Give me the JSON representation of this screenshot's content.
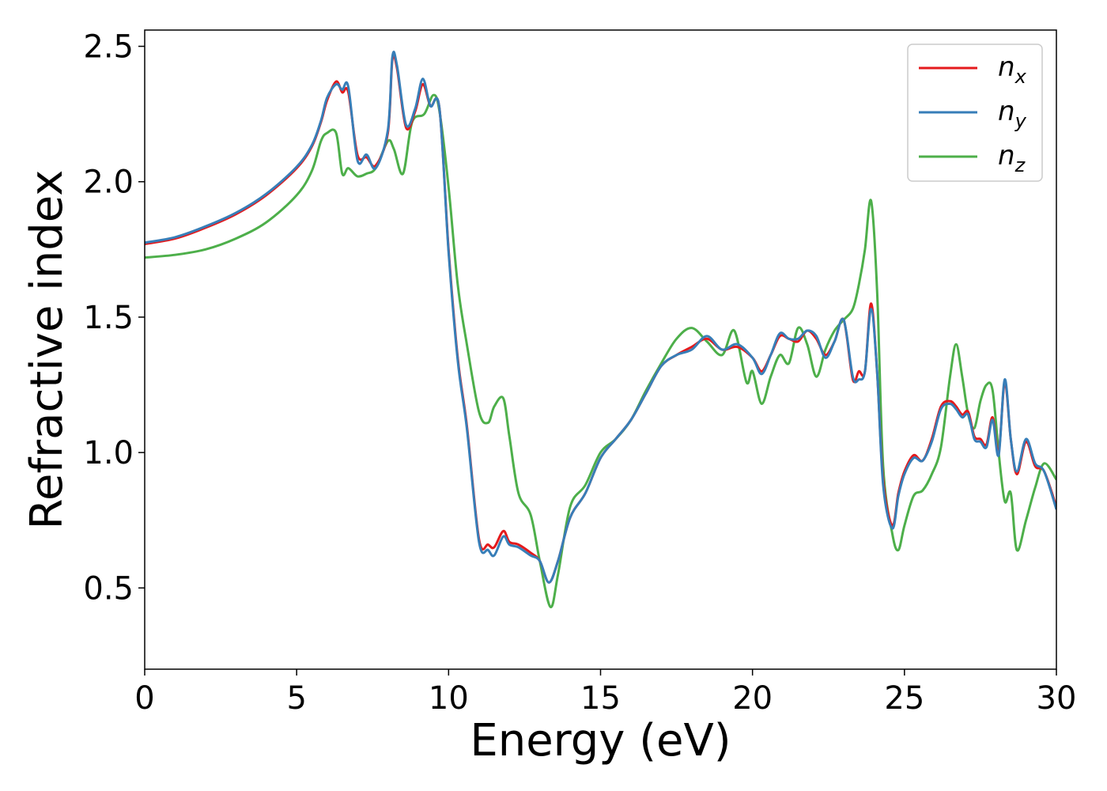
{
  "chart_data": {
    "type": "line",
    "xlabel": "Energy (eV)",
    "ylabel": "Refractive index",
    "xlim": [
      0,
      30
    ],
    "ylim": [
      0.2,
      2.56
    ],
    "xticks": [
      0,
      5,
      10,
      15,
      20,
      25,
      30
    ],
    "xtick_labels": [
      "0",
      "5",
      "10",
      "15",
      "20",
      "25",
      "30"
    ],
    "yticks": [
      0.5,
      1.0,
      1.5,
      2.0,
      2.5
    ],
    "ytick_labels": [
      "0.5",
      "1.0",
      "1.5",
      "2.0",
      "2.5"
    ],
    "grid": false,
    "legend_position": "top-right",
    "series": [
      {
        "name": "n_x",
        "legend_main": "n",
        "legend_sub": "x",
        "color": "#e41a1c",
        "x": [
          0,
          1,
          2,
          3,
          4,
          5,
          5.5,
          5.8,
          6.0,
          6.3,
          6.5,
          6.7,
          7.0,
          7.3,
          7.6,
          8.0,
          8.15,
          8.3,
          8.6,
          8.9,
          9.15,
          9.4,
          9.7,
          10.0,
          10.3,
          10.6,
          11.0,
          11.3,
          11.5,
          11.8,
          12.0,
          12.3,
          12.7,
          13.0,
          13.3,
          13.6,
          14.0,
          14.5,
          15.0,
          15.5,
          16.0,
          16.5,
          17.0,
          17.5,
          18.0,
          18.5,
          19.0,
          19.5,
          20.0,
          20.3,
          20.6,
          20.9,
          21.2,
          21.5,
          21.8,
          22.1,
          22.4,
          22.7,
          23.0,
          23.3,
          23.5,
          23.7,
          23.9,
          24.1,
          24.3,
          24.6,
          24.8,
          25.0,
          25.3,
          25.6,
          25.9,
          26.2,
          26.5,
          26.7,
          26.9,
          27.1,
          27.3,
          27.5,
          27.7,
          27.9,
          28.1,
          28.3,
          28.5,
          28.7,
          29.0,
          29.3,
          29.6,
          30.0
        ],
        "y": [
          1.77,
          1.79,
          1.83,
          1.88,
          1.95,
          2.05,
          2.13,
          2.22,
          2.3,
          2.37,
          2.33,
          2.33,
          2.1,
          2.09,
          2.06,
          2.18,
          2.45,
          2.42,
          2.2,
          2.26,
          2.36,
          2.28,
          2.27,
          1.75,
          1.35,
          1.1,
          0.68,
          0.66,
          0.65,
          0.71,
          0.67,
          0.66,
          0.63,
          0.6,
          0.52,
          0.6,
          0.76,
          0.85,
          0.98,
          1.05,
          1.12,
          1.22,
          1.32,
          1.36,
          1.39,
          1.42,
          1.38,
          1.39,
          1.35,
          1.3,
          1.36,
          1.43,
          1.42,
          1.41,
          1.45,
          1.42,
          1.36,
          1.41,
          1.49,
          1.27,
          1.3,
          1.3,
          1.55,
          1.3,
          0.9,
          0.73,
          0.85,
          0.93,
          0.99,
          0.97,
          1.05,
          1.17,
          1.19,
          1.17,
          1.14,
          1.15,
          1.06,
          1.05,
          1.03,
          1.13,
          1.0,
          1.26,
          1.05,
          0.92,
          1.04,
          0.95,
          0.93,
          0.8
        ]
      },
      {
        "name": "n_y",
        "legend_main": "n",
        "legend_sub": "y",
        "color": "#377eb8",
        "x": [
          0,
          1,
          2,
          3,
          4,
          5,
          5.5,
          5.8,
          6.0,
          6.3,
          6.5,
          6.7,
          7.0,
          7.3,
          7.6,
          8.0,
          8.15,
          8.3,
          8.6,
          8.9,
          9.15,
          9.4,
          9.7,
          10.0,
          10.3,
          10.6,
          11.0,
          11.3,
          11.5,
          11.8,
          12.0,
          12.3,
          12.7,
          13.0,
          13.3,
          13.6,
          14.0,
          14.5,
          15.0,
          15.5,
          16.0,
          16.5,
          17.0,
          17.5,
          18.0,
          18.5,
          19.0,
          19.5,
          20.0,
          20.3,
          20.6,
          20.9,
          21.2,
          21.5,
          21.8,
          22.1,
          22.4,
          22.7,
          23.0,
          23.3,
          23.5,
          23.7,
          23.9,
          24.1,
          24.3,
          24.6,
          24.8,
          25.0,
          25.3,
          25.6,
          25.9,
          26.2,
          26.5,
          26.7,
          26.9,
          27.1,
          27.3,
          27.5,
          27.7,
          27.9,
          28.1,
          28.3,
          28.5,
          28.7,
          29.0,
          29.3,
          29.6,
          30.0
        ],
        "y": [
          1.775,
          1.795,
          1.835,
          1.885,
          1.955,
          2.055,
          2.135,
          2.225,
          2.31,
          2.36,
          2.34,
          2.35,
          2.08,
          2.1,
          2.05,
          2.19,
          2.46,
          2.43,
          2.21,
          2.27,
          2.38,
          2.28,
          2.27,
          1.74,
          1.34,
          1.09,
          0.67,
          0.64,
          0.62,
          0.69,
          0.66,
          0.65,
          0.62,
          0.6,
          0.52,
          0.6,
          0.76,
          0.85,
          0.98,
          1.05,
          1.12,
          1.22,
          1.32,
          1.36,
          1.38,
          1.43,
          1.38,
          1.4,
          1.35,
          1.29,
          1.36,
          1.44,
          1.42,
          1.42,
          1.45,
          1.43,
          1.35,
          1.41,
          1.49,
          1.28,
          1.27,
          1.3,
          1.53,
          1.3,
          0.88,
          0.72,
          0.84,
          0.92,
          0.98,
          0.97,
          1.04,
          1.16,
          1.18,
          1.16,
          1.13,
          1.14,
          1.05,
          1.04,
          1.02,
          1.12,
          0.99,
          1.27,
          1.05,
          0.93,
          1.05,
          0.96,
          0.93,
          0.79
        ]
      },
      {
        "name": "n_z",
        "legend_main": "n",
        "legend_sub": "z",
        "color": "#4daf4a",
        "x": [
          0,
          1,
          2,
          3,
          4,
          5,
          5.5,
          5.8,
          6.0,
          6.3,
          6.5,
          6.7,
          7.0,
          7.3,
          7.6,
          8.0,
          8.2,
          8.5,
          8.8,
          9.2,
          9.5,
          9.7,
          10.0,
          10.3,
          10.6,
          11.0,
          11.3,
          11.5,
          11.8,
          12.0,
          12.3,
          12.7,
          13.0,
          13.35,
          13.6,
          14.0,
          14.5,
          15.0,
          15.5,
          16.0,
          16.5,
          17.0,
          17.5,
          18.0,
          18.5,
          19.0,
          19.4,
          19.8,
          20.0,
          20.3,
          20.6,
          20.9,
          21.2,
          21.5,
          21.8,
          22.1,
          22.4,
          22.7,
          23.0,
          23.3,
          23.5,
          23.7,
          23.9,
          24.1,
          24.3,
          24.6,
          24.8,
          25.0,
          25.3,
          25.6,
          25.9,
          26.2,
          26.5,
          26.7,
          26.9,
          27.1,
          27.3,
          27.5,
          27.7,
          27.9,
          28.1,
          28.3,
          28.5,
          28.7,
          29.0,
          29.3,
          29.6,
          30.0
        ],
        "y": [
          1.72,
          1.73,
          1.75,
          1.79,
          1.85,
          1.95,
          2.04,
          2.15,
          2.18,
          2.18,
          2.03,
          2.05,
          2.02,
          2.03,
          2.05,
          2.15,
          2.12,
          2.03,
          2.22,
          2.25,
          2.32,
          2.26,
          1.98,
          1.62,
          1.4,
          1.15,
          1.11,
          1.17,
          1.2,
          1.06,
          0.85,
          0.77,
          0.6,
          0.43,
          0.55,
          0.8,
          0.88,
          1.0,
          1.05,
          1.12,
          1.23,
          1.33,
          1.42,
          1.46,
          1.41,
          1.36,
          1.45,
          1.26,
          1.3,
          1.18,
          1.28,
          1.36,
          1.33,
          1.46,
          1.4,
          1.28,
          1.38,
          1.45,
          1.49,
          1.53,
          1.62,
          1.75,
          1.93,
          1.6,
          0.95,
          0.7,
          0.64,
          0.73,
          0.84,
          0.86,
          0.92,
          1.02,
          1.28,
          1.4,
          1.28,
          1.14,
          1.09,
          1.19,
          1.25,
          1.23,
          1.0,
          0.82,
          0.85,
          0.64,
          0.75,
          0.87,
          0.96,
          0.9
        ]
      }
    ]
  }
}
